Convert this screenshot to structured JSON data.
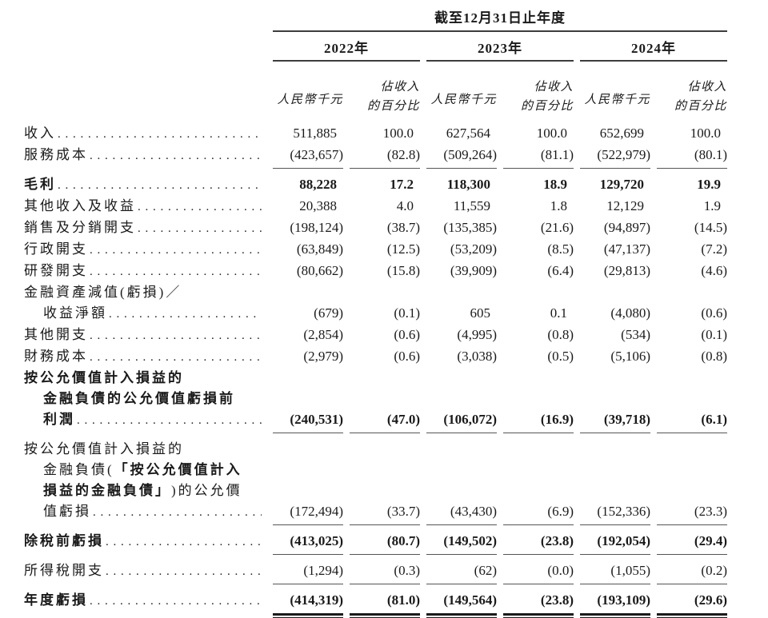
{
  "table": {
    "period_header": "截至12月31日止年度",
    "year_groups": [
      {
        "year": "2022年",
        "unit": "人民幣千元",
        "pct_line1": "佔收入",
        "pct_line2": "的百分比"
      },
      {
        "year": "2023年",
        "unit": "人民幣千元",
        "pct_line1": "佔收入",
        "pct_line2": "的百分比"
      },
      {
        "year": "2024年",
        "unit": "人民幣千元",
        "pct_line1": "佔收入",
        "pct_line2": "的百分比"
      }
    ],
    "rows": [
      {
        "lines": [
          {
            "segs": [
              {
                "t": "收入"
              }
            ]
          }
        ],
        "values": [
          "511,885",
          "100.0",
          "627,564",
          "100.0",
          "652,699",
          "100.0"
        ]
      },
      {
        "lines": [
          {
            "segs": [
              {
                "t": "服務成本"
              }
            ]
          }
        ],
        "values": [
          "(423,657)",
          "(82.8)",
          "(509,264)",
          "(81.1)",
          "(522,979)",
          "(80.1)"
        ],
        "rule": "single"
      },
      {
        "lines": [
          {
            "segs": [
              {
                "t": "毛利",
                "b": true
              }
            ]
          }
        ],
        "values": [
          "88,228",
          "17.2",
          "118,300",
          "18.9",
          "129,720",
          "19.9"
        ],
        "bold": true
      },
      {
        "lines": [
          {
            "segs": [
              {
                "t": "其他收入及收益"
              }
            ]
          }
        ],
        "values": [
          "20,388",
          "4.0",
          "11,559",
          "1.8",
          "12,129",
          "1.9"
        ]
      },
      {
        "lines": [
          {
            "segs": [
              {
                "t": "銷售及分銷開支"
              }
            ]
          }
        ],
        "values": [
          "(198,124)",
          "(38.7)",
          "(135,385)",
          "(21.6)",
          "(94,897)",
          "(14.5)"
        ]
      },
      {
        "lines": [
          {
            "segs": [
              {
                "t": "行政開支"
              }
            ]
          }
        ],
        "values": [
          "(63,849)",
          "(12.5)",
          "(53,209)",
          "(8.5)",
          "(47,137)",
          "(7.2)"
        ]
      },
      {
        "lines": [
          {
            "segs": [
              {
                "t": "研發開支"
              }
            ]
          }
        ],
        "values": [
          "(80,662)",
          "(15.8)",
          "(39,909)",
          "(6.4)",
          "(29,813)",
          "(4.6)"
        ]
      },
      {
        "lines": [
          {
            "segs": [
              {
                "t": "金融資產減值(虧損)／"
              }
            ]
          },
          {
            "indent": true,
            "segs": [
              {
                "t": "收益淨額"
              }
            ]
          }
        ],
        "values": [
          "(679)",
          "(0.1)",
          "605",
          "0.1",
          "(4,080)",
          "(0.6)"
        ]
      },
      {
        "lines": [
          {
            "segs": [
              {
                "t": "其他開支"
              }
            ]
          }
        ],
        "values": [
          "(2,854)",
          "(0.6)",
          "(4,995)",
          "(0.8)",
          "(534)",
          "(0.1)"
        ]
      },
      {
        "lines": [
          {
            "segs": [
              {
                "t": "財務成本"
              }
            ]
          }
        ],
        "values": [
          "(2,979)",
          "(0.6)",
          "(3,038)",
          "(0.5)",
          "(5,106)",
          "(0.8)"
        ]
      },
      {
        "lines": [
          {
            "segs": [
              {
                "t": "按公允價值計入損益的",
                "b": true
              }
            ]
          },
          {
            "indent": true,
            "segs": [
              {
                "t": "金融負債的公允價值虧損前",
                "b": true
              }
            ]
          },
          {
            "indent": true,
            "segs": [
              {
                "t": "利潤",
                "b": true
              }
            ]
          }
        ],
        "values": [
          "(240,531)",
          "(47.0)",
          "(106,072)",
          "(16.9)",
          "(39,718)",
          "(6.1)"
        ],
        "bold": true,
        "rule": "single"
      },
      {
        "lines": [
          {
            "segs": [
              {
                "t": "按公允價值計入損益的"
              }
            ]
          },
          {
            "indent": true,
            "segs": [
              {
                "t": "金融負債("
              },
              {
                "t": "「按公允價值計入",
                "b": true
              }
            ]
          },
          {
            "indent": true,
            "segs": [
              {
                "t": "損益的金融負債」",
                "b": true
              },
              {
                "t": ")的公允價"
              }
            ]
          },
          {
            "indent": true,
            "segs": [
              {
                "t": "值虧損"
              }
            ]
          }
        ],
        "values": [
          "(172,494)",
          "(33.7)",
          "(43,430)",
          "(6.9)",
          "(152,336)",
          "(23.3)"
        ],
        "rule": "single"
      },
      {
        "lines": [
          {
            "segs": [
              {
                "t": "除稅前虧損",
                "b": true
              }
            ]
          }
        ],
        "values": [
          "(413,025)",
          "(80.7)",
          "(149,502)",
          "(23.8)",
          "(192,054)",
          "(29.4)"
        ],
        "bold": true,
        "rule": "single"
      },
      {
        "lines": [
          {
            "segs": [
              {
                "t": "所得稅開支"
              }
            ]
          }
        ],
        "values": [
          "(1,294)",
          "(0.3)",
          "(62)",
          "(0.0)",
          "(1,055)",
          "(0.2)"
        ],
        "rule": "single"
      },
      {
        "lines": [
          {
            "segs": [
              {
                "t": "年度虧損",
                "b": true
              }
            ]
          }
        ],
        "values": [
          "(414,319)",
          "(81.0)",
          "(149,564)",
          "(23.8)",
          "(193,109)",
          "(29.6)"
        ],
        "bold": true,
        "rule": "double"
      }
    ]
  }
}
